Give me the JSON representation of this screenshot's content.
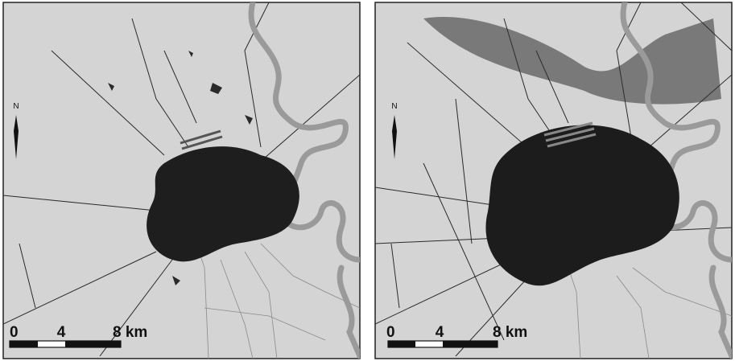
{
  "panels": [
    {
      "north": "N",
      "scale_labels": [
        "0",
        "4",
        "8 km"
      ]
    },
    {
      "north": "N",
      "scale_labels": [
        "0",
        "4",
        "8 km"
      ]
    }
  ]
}
